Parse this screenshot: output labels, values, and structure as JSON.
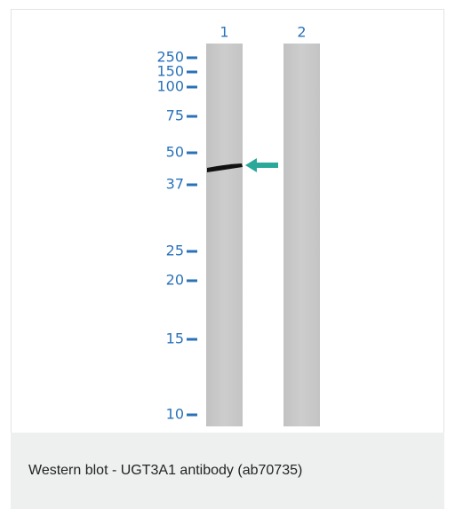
{
  "figure": {
    "lanes": [
      "1",
      "2"
    ],
    "markers": [
      "250",
      "150",
      "100",
      "75",
      "50",
      "37",
      "25",
      "20",
      "15",
      "10"
    ]
  },
  "caption": "Western blot - UGT3A1 antibody (ab70735)"
}
